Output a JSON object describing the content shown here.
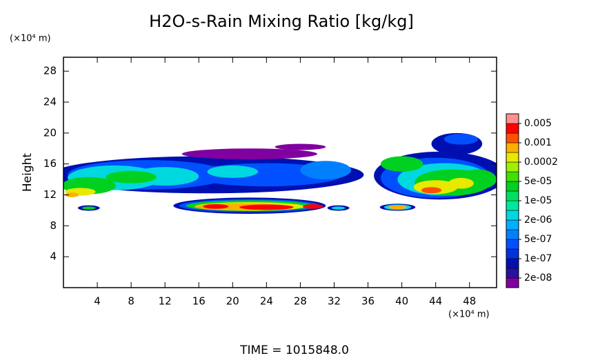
{
  "chart_data": {
    "type": "contour",
    "title": "H2O-s-Rain Mixing Ratio [kg/kg]",
    "y_label": "Height",
    "y_unit": "(×10⁴ m)",
    "x_unit": "(×10⁴ m)",
    "footer": "TIME = 1015848.0",
    "xlim": [
      0,
      51.2
    ],
    "xticks": [
      4,
      8,
      12,
      16,
      20,
      24,
      28,
      32,
      36,
      40,
      44,
      48
    ],
    "ylim": [
      0,
      29.8
    ],
    "yticks": [
      4,
      8,
      12,
      16,
      20,
      24,
      28
    ],
    "levels": [
      {
        "value": 2e-08,
        "label": "2e-08"
      },
      {
        "value": 1e-07,
        "label": "1e-07"
      },
      {
        "value": 5e-07,
        "label": "5e-07"
      },
      {
        "value": 2e-06,
        "label": "2e-06"
      },
      {
        "value": 1e-05,
        "label": "1e-05"
      },
      {
        "value": 5e-05,
        "label": "5e-05"
      },
      0.0002,
      0.001,
      0.005
    ],
    "colors": [
      "#8000a0",
      "#2a10a0",
      "#0010b0",
      "#0030e0",
      "#0050ff",
      "#0080ff",
      "#00b0ff",
      "#00d8e0",
      "#00e8a0",
      "#00e060",
      "#00d020",
      "#40e000",
      "#a0f000",
      "#e8e800",
      "#ffb000",
      "#ff5000",
      "#ff0000",
      "#ff9090"
    ]
  }
}
